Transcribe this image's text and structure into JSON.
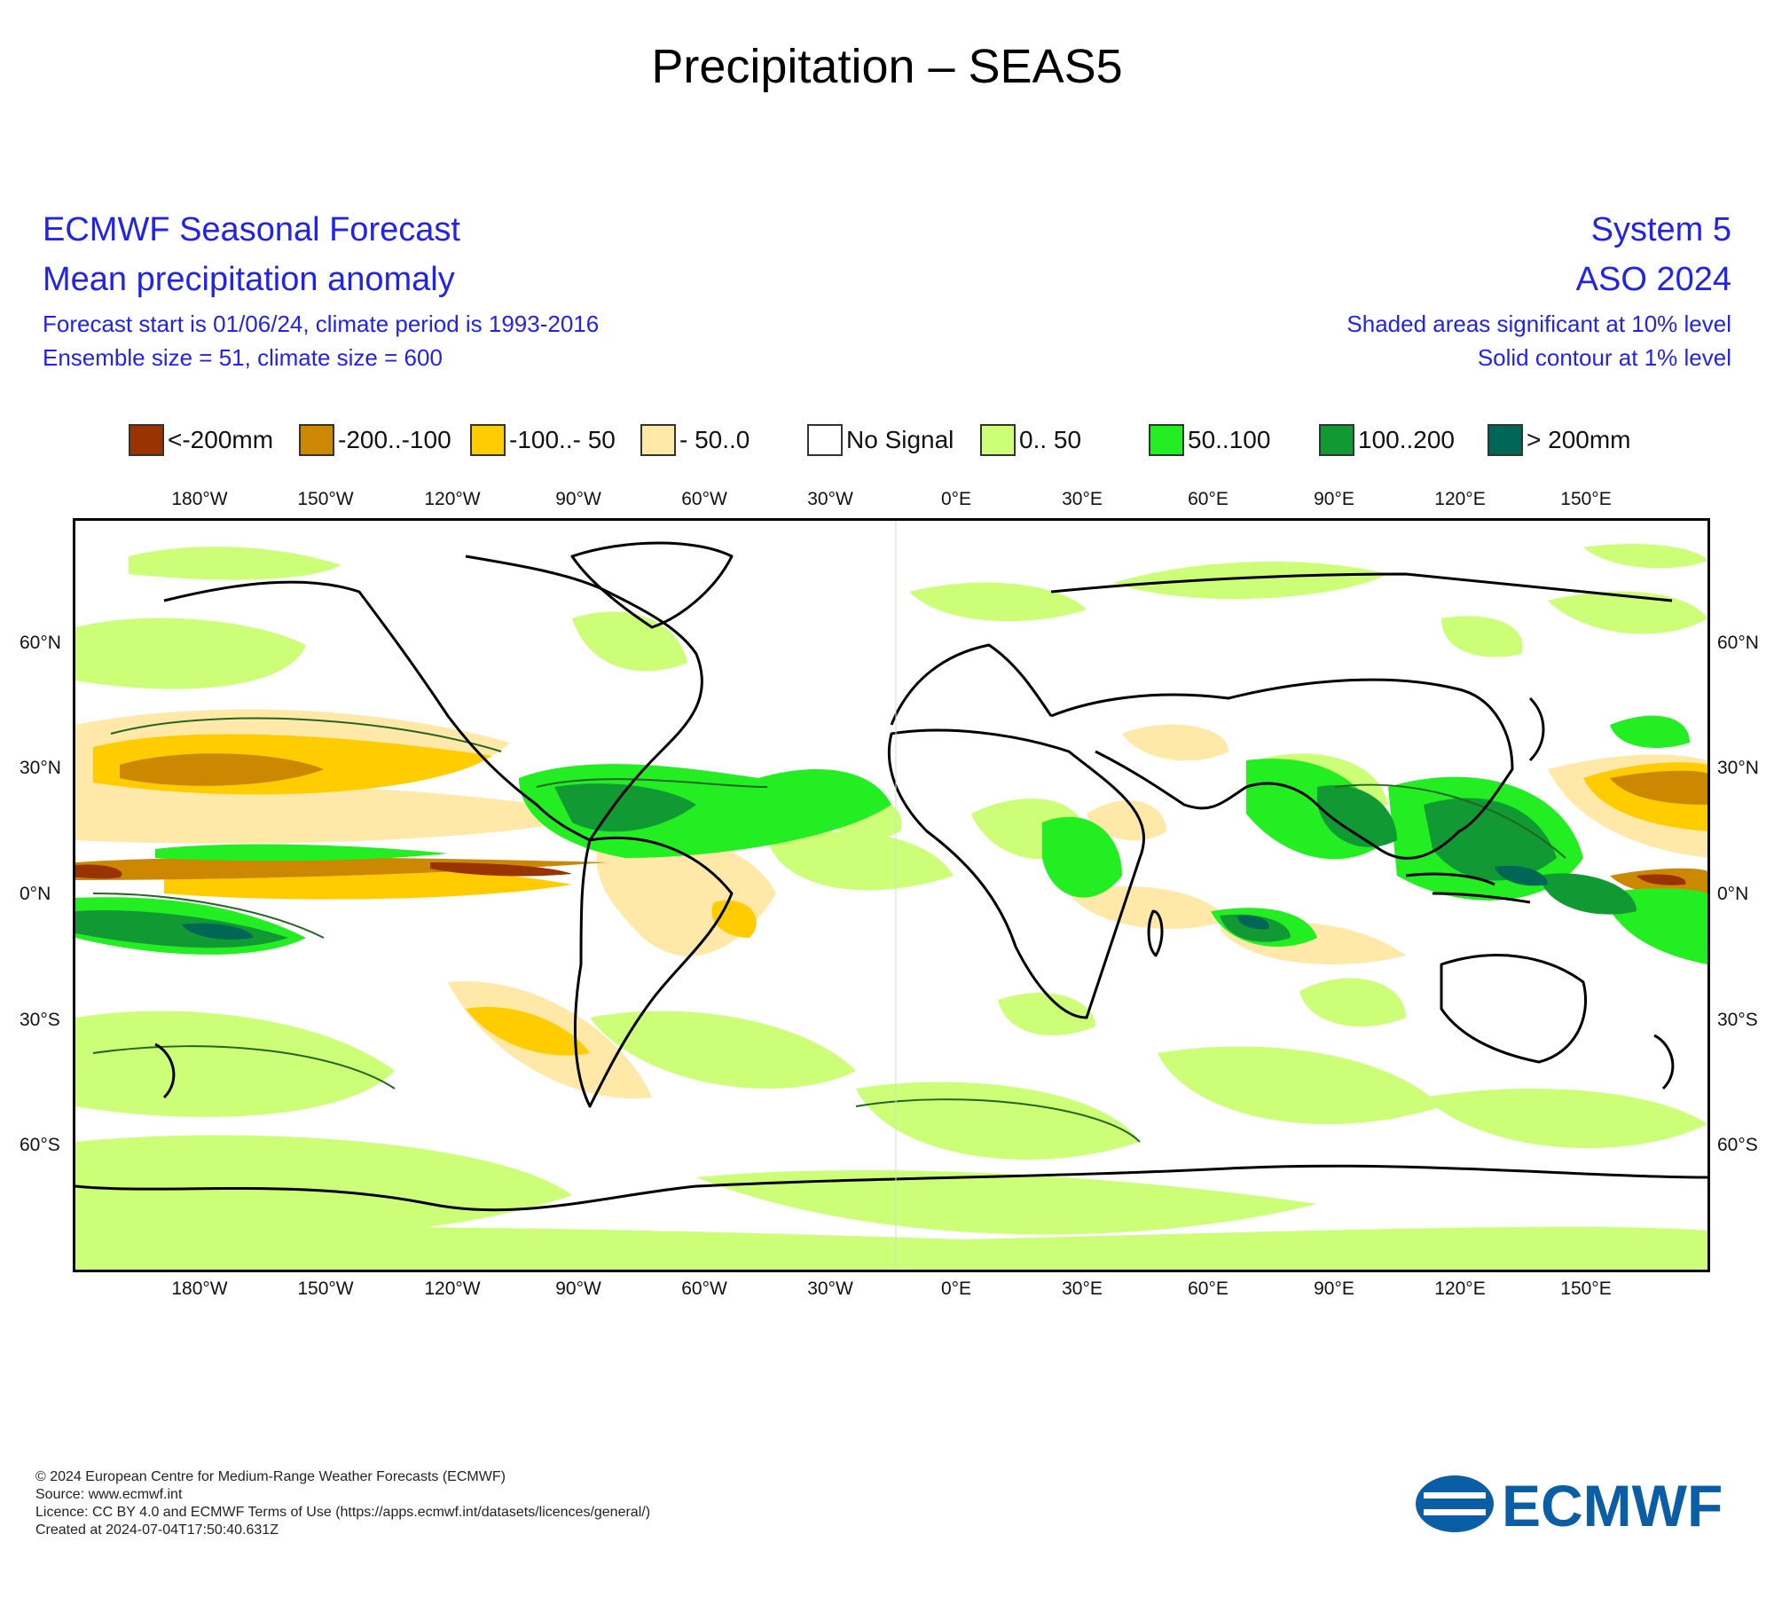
{
  "title": "Precipitation – SEAS5",
  "header": {
    "left": {
      "line1": "ECMWF Seasonal Forecast",
      "line2": "Mean precipitation anomaly",
      "line3": "Forecast start is 01/06/24, climate period is 1993-2016",
      "line4": "Ensemble size = 51, climate size = 600"
    },
    "right": {
      "line1": "System 5",
      "line2": "ASO 2024",
      "line3": "Shaded areas significant at 10% level",
      "line4": "Solid contour at 1% level"
    }
  },
  "legend": [
    {
      "label": "<-200mm",
      "color": "#993300"
    },
    {
      "label": "-200..-100",
      "color": "#cc8800"
    },
    {
      "label": "-100..- 50",
      "color": "#ffcc00"
    },
    {
      "label": "- 50..0",
      "color": "#ffe8a8"
    },
    {
      "label": "No Signal",
      "color": "#ffffff"
    },
    {
      "label": "0.. 50",
      "color": "#ccff77"
    },
    {
      "label": "50..100",
      "color": "#22ee22"
    },
    {
      "label": "100..200",
      "color": "#119933"
    },
    {
      "label": "> 200mm",
      "color": "#006655"
    }
  ],
  "axes": {
    "lon_labels": [
      "180°W",
      "150°W",
      "120°W",
      "90°W",
      "60°W",
      "30°W",
      "0°E",
      "30°E",
      "60°E",
      "90°E",
      "120°E",
      "150°E"
    ],
    "lat_labels": [
      "60°N",
      "30°N",
      "0°N",
      "30°S",
      "60°S"
    ]
  },
  "footer": {
    "line1": "© 2024 European Centre for Medium-Range Weather Forecasts (ECMWF)",
    "line2": "Source: www.ecmwf.int",
    "line3": "Licence: CC BY 4.0 and ECMWF Terms of Use (https://apps.ecmwf.int/datasets/licences/general/)",
    "line4": "Created at 2024-07-04T17:50:40.631Z"
  },
  "logo_text": "ECMWF",
  "colors": {
    "header_text": "#2222ee",
    "logo": "#0a5ea6"
  }
}
